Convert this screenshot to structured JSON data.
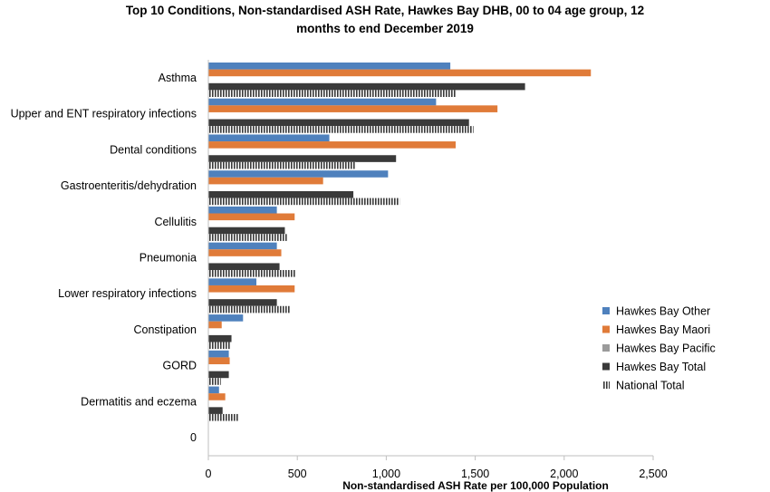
{
  "chart_data": {
    "type": "bar",
    "orientation": "horizontal",
    "title_line1": "Top 10 Conditions, Non-standardised ASH Rate, Hawkes Bay DHB, 00 to 04 age group, 12",
    "title_line2": "months to end December 2019",
    "xlabel": "Non-standardised ASH Rate per 100,000 Population",
    "ylabel": "",
    "xlim": [
      0,
      2500
    ],
    "x_ticks": [
      "0",
      "500",
      "1,000",
      "1,500",
      "2,000",
      "2,500"
    ],
    "grid": false,
    "legend_position": "right",
    "categories": [
      "Asthma",
      "Upper and ENT respiratory infections",
      "Dental conditions",
      "Gastroenteritis/dehydration",
      "Cellulitis",
      "Pneumonia",
      "Lower respiratory infections",
      "Constipation",
      "GORD",
      "Dermatitis and eczema",
      "0"
    ],
    "series": [
      {
        "name": "Hawkes Bay Other",
        "color": "#4f81bd",
        "pattern": "solid",
        "values": [
          1360,
          1280,
          680,
          1010,
          385,
          385,
          270,
          195,
          115,
          60,
          0
        ]
      },
      {
        "name": "Hawkes Bay Maori",
        "color": "#e07b39",
        "pattern": "solid",
        "values": [
          2150,
          1625,
          1390,
          645,
          485,
          410,
          485,
          75,
          120,
          95,
          0
        ]
      },
      {
        "name": "Hawkes Bay Pacific",
        "color": "#9b9b9b",
        "pattern": "solid",
        "values": [
          0,
          0,
          0,
          0,
          0,
          0,
          0,
          0,
          0,
          0,
          0
        ]
      },
      {
        "name": "Hawkes Bay Total",
        "color": "#3a3a3a",
        "pattern": "solid",
        "values": [
          1780,
          1465,
          1055,
          815,
          430,
          400,
          385,
          130,
          115,
          80,
          0
        ]
      },
      {
        "name": "National Total",
        "color": "#3a3a3a",
        "pattern": "vertical-stripes",
        "values": [
          1390,
          1490,
          830,
          1075,
          445,
          490,
          460,
          125,
          70,
          170,
          0
        ]
      }
    ]
  }
}
